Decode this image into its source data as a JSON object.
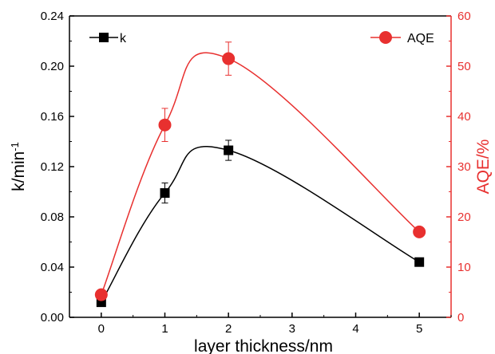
{
  "chart_data": {
    "type": "line",
    "xlabel": "layer thickness/nm",
    "x": [
      0,
      1,
      2,
      5
    ],
    "x_ticks": [
      "0",
      "1",
      "2",
      "3",
      "4",
      "5"
    ],
    "xlim": [
      -0.5,
      5.5
    ],
    "ylabel_left": {
      "text": "k/min",
      "superscript": "-1"
    },
    "ylim_left": [
      0,
      0.24
    ],
    "yticks_left": [
      "0.00",
      "0.04",
      "0.08",
      "0.12",
      "0.16",
      "0.20",
      "0.24"
    ],
    "ylabel_right": "AQE/%",
    "ylim_right": [
      0,
      60
    ],
    "yticks_right": [
      "0",
      "10",
      "20",
      "30",
      "40",
      "50",
      "60"
    ],
    "grid": false,
    "legend_placement": "top (k left, AQE right)",
    "series": [
      {
        "name": "k",
        "axis": "left",
        "color": "#000000",
        "marker": "square",
        "values": [
          0.012,
          0.099,
          0.133,
          0.044
        ],
        "errors": [
          0,
          0.008,
          0.008,
          0
        ]
      },
      {
        "name": "AQE",
        "axis": "right",
        "color": "#e8302f",
        "marker": "circle",
        "values": [
          4.5,
          38.3,
          51.5,
          17.0
        ],
        "errors": [
          0,
          3.3,
          3.3,
          0
        ]
      }
    ]
  }
}
